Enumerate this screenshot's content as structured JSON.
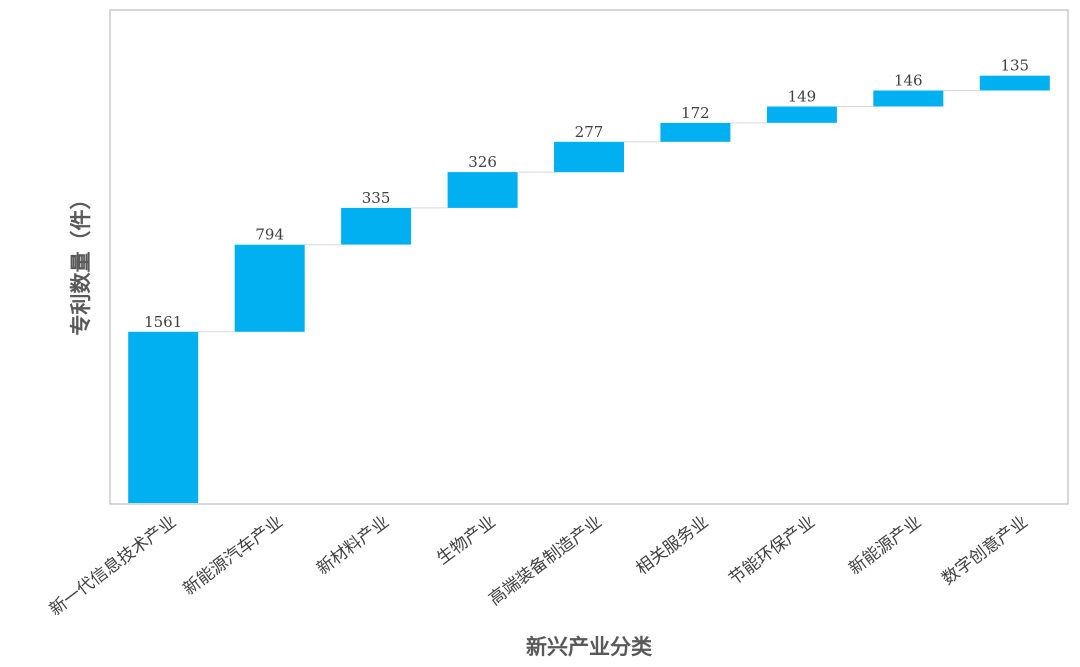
{
  "chart_data": {
    "type": "waterfall",
    "title": "",
    "xlabel": "新兴产业分类",
    "ylabel": "专利数量（件）",
    "categories": [
      "新一代信息技术产业",
      "新能源汽车产业",
      "新材料产业",
      "生物产业",
      "高端装备制造产业",
      "相关服务业",
      "节能环保产业",
      "新能源产业",
      "数字创意产业"
    ],
    "values": [
      1561,
      794,
      335,
      326,
      277,
      172,
      149,
      146,
      135
    ],
    "ylim": [
      0,
      4300
    ],
    "grid": false,
    "legend": "none",
    "colors": {
      "bar": "#00B0F0",
      "connector": "#D9D9D9",
      "frame": "#BFBFBF"
    }
  }
}
